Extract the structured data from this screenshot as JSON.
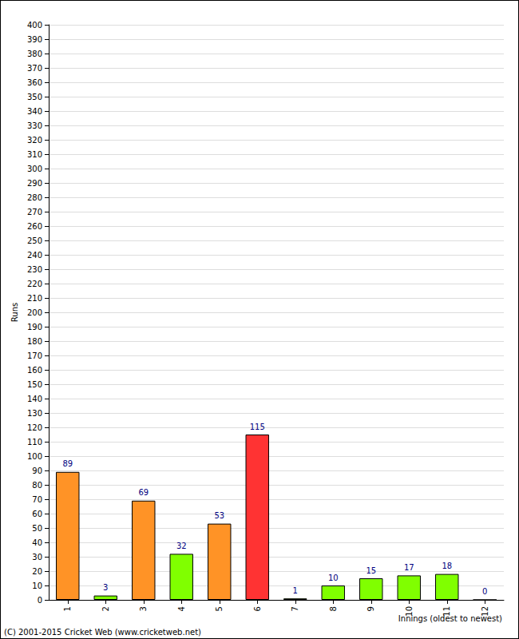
{
  "chart_data": {
    "type": "bar",
    "y_label": "Runs",
    "x_label": "Innings (oldest to newest)",
    "annotations": [
      "(C) 2001-2015 Cricket Web (www.cricketweb.net)"
    ],
    "categories": [
      "1",
      "2",
      "3",
      "4",
      "5",
      "6",
      "7",
      "8",
      "9",
      "10",
      "11",
      "12"
    ],
    "values": [
      89,
      3,
      69,
      32,
      53,
      115,
      1,
      10,
      15,
      17,
      18,
      0
    ],
    "colors": [
      "#ff9326",
      "#80ff00",
      "#ff9326",
      "#80ff00",
      "#ff9326",
      "#ff3333",
      "#80ff00",
      "#80ff00",
      "#80ff00",
      "#80ff00",
      "#80ff00",
      "#80ff00"
    ],
    "ylim": [
      0,
      400
    ],
    "yticks": [
      0,
      10,
      20,
      30,
      40,
      50,
      60,
      70,
      80,
      90,
      100,
      110,
      120,
      130,
      140,
      150,
      160,
      170,
      180,
      190,
      200,
      210,
      220,
      230,
      240,
      250,
      260,
      270,
      280,
      290,
      300,
      310,
      320,
      330,
      340,
      350,
      360,
      370,
      380,
      390,
      400
    ],
    "grid": true,
    "data_labels": true
  }
}
